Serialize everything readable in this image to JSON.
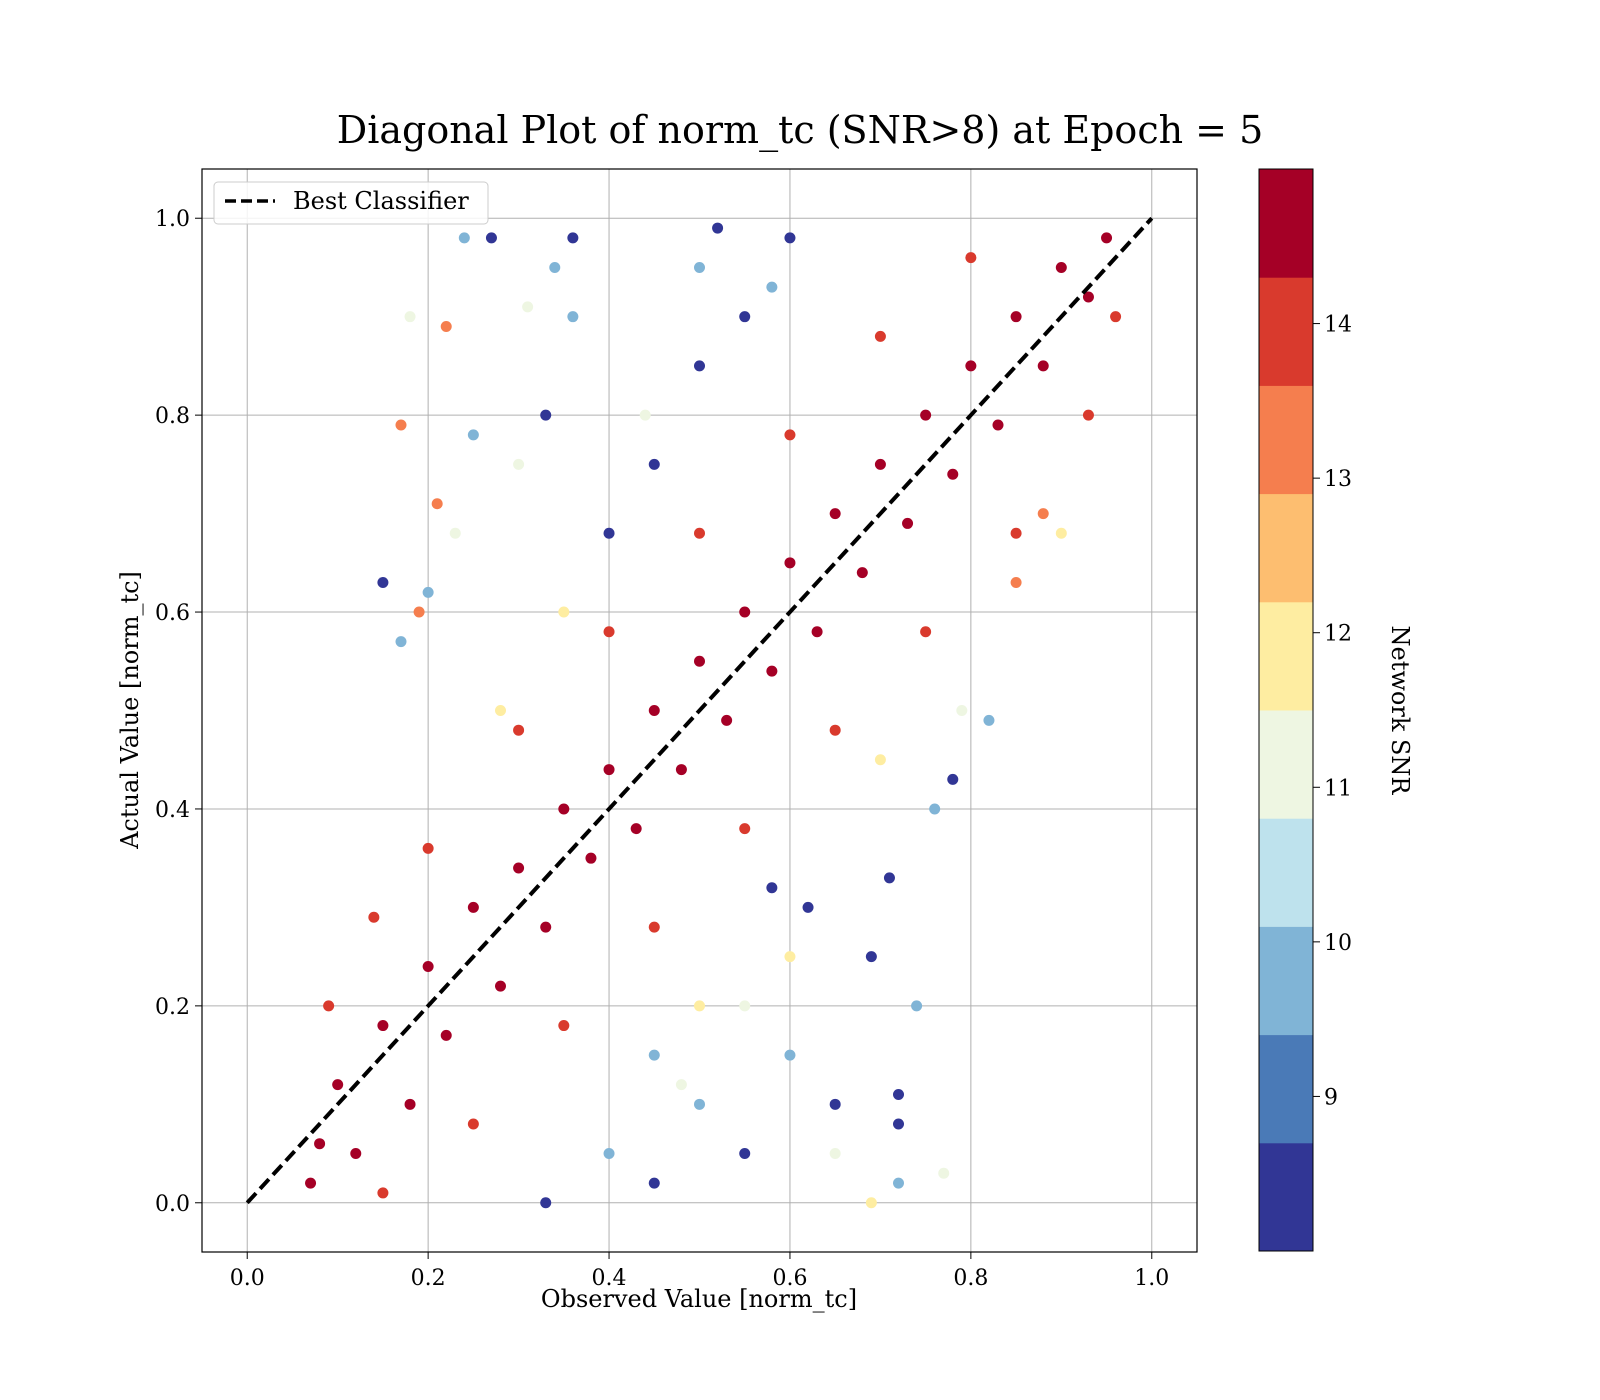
{
  "chart_data": {
    "type": "scatter",
    "title": "Diagonal Plot of norm_tc (SNR>8) at Epoch = 5",
    "xlabel": "Observed Value [norm_tc]",
    "ylabel": "Actual Value [norm_tc]",
    "xlim": [
      -0.05,
      1.05
    ],
    "ylim": [
      -0.05,
      1.05
    ],
    "xticks": [
      "0.0",
      "0.2",
      "0.4",
      "0.6",
      "0.8",
      "1.0"
    ],
    "yticks": [
      "0.0",
      "0.2",
      "0.4",
      "0.6",
      "0.8",
      "1.0"
    ],
    "grid": true,
    "legend": {
      "placement": "top-left",
      "entries": [
        "Best Classifier"
      ]
    },
    "reference_line": {
      "name": "Best Classifier",
      "style": "dashed",
      "color": "#000000",
      "x": [
        0,
        1
      ],
      "y": [
        0,
        1
      ]
    },
    "colorbar": {
      "label": "Network SNR",
      "range": [
        8,
        15
      ],
      "ticks": [
        "9",
        "10",
        "11",
        "12",
        "13",
        "14"
      ],
      "levels": [
        {
          "from": 8,
          "to": 8.7,
          "color": "#313695"
        },
        {
          "from": 8.7,
          "to": 9.4,
          "color": "#4a7ab7"
        },
        {
          "from": 9.4,
          "to": 10.1,
          "color": "#80b4d6"
        },
        {
          "from": 10.1,
          "to": 10.8,
          "color": "#bee2ed"
        },
        {
          "from": 10.8,
          "to": 11.5,
          "color": "#eef6e2"
        },
        {
          "from": 11.5,
          "to": 12.2,
          "color": "#feeda1"
        },
        {
          "from": 12.2,
          "to": 12.9,
          "color": "#fdbe70"
        },
        {
          "from": 12.9,
          "to": 13.6,
          "color": "#f57e4e"
        },
        {
          "from": 13.6,
          "to": 14.3,
          "color": "#d93a2d"
        },
        {
          "from": 14.3,
          "to": 15,
          "color": "#a50026"
        }
      ]
    },
    "series": [
      {
        "color_by": "Network SNR",
        "points": [
          [
            0.07,
            0.02,
            15
          ],
          [
            0.08,
            0.06,
            15
          ],
          [
            0.1,
            0.12,
            15
          ],
          [
            0.12,
            0.05,
            15
          ],
          [
            0.15,
            0.18,
            15
          ],
          [
            0.18,
            0.1,
            15
          ],
          [
            0.2,
            0.24,
            15
          ],
          [
            0.22,
            0.17,
            15
          ],
          [
            0.25,
            0.3,
            15
          ],
          [
            0.28,
            0.22,
            15
          ],
          [
            0.3,
            0.34,
            15
          ],
          [
            0.33,
            0.28,
            15
          ],
          [
            0.35,
            0.4,
            15
          ],
          [
            0.38,
            0.35,
            15
          ],
          [
            0.4,
            0.44,
            15
          ],
          [
            0.43,
            0.38,
            15
          ],
          [
            0.45,
            0.5,
            15
          ],
          [
            0.48,
            0.44,
            15
          ],
          [
            0.5,
            0.55,
            15
          ],
          [
            0.53,
            0.49,
            15
          ],
          [
            0.55,
            0.6,
            15
          ],
          [
            0.58,
            0.54,
            15
          ],
          [
            0.6,
            0.65,
            15
          ],
          [
            0.63,
            0.58,
            15
          ],
          [
            0.65,
            0.7,
            15
          ],
          [
            0.68,
            0.64,
            15
          ],
          [
            0.7,
            0.75,
            15
          ],
          [
            0.73,
            0.69,
            15
          ],
          [
            0.75,
            0.8,
            15
          ],
          [
            0.78,
            0.74,
            15
          ],
          [
            0.8,
            0.85,
            15
          ],
          [
            0.83,
            0.79,
            15
          ],
          [
            0.85,
            0.9,
            15
          ],
          [
            0.88,
            0.85,
            15
          ],
          [
            0.9,
            0.95,
            15
          ],
          [
            0.93,
            0.92,
            15
          ],
          [
            0.95,
            0.98,
            15
          ],
          [
            0.09,
            0.2,
            14
          ],
          [
            0.14,
            0.29,
            14
          ],
          [
            0.2,
            0.36,
            14
          ],
          [
            0.3,
            0.48,
            14
          ],
          [
            0.4,
            0.58,
            14
          ],
          [
            0.5,
            0.68,
            14
          ],
          [
            0.6,
            0.78,
            14
          ],
          [
            0.7,
            0.88,
            14
          ],
          [
            0.8,
            0.96,
            14
          ],
          [
            0.15,
            0.01,
            14
          ],
          [
            0.25,
            0.08,
            14
          ],
          [
            0.35,
            0.18,
            14
          ],
          [
            0.45,
            0.28,
            14
          ],
          [
            0.55,
            0.38,
            14
          ],
          [
            0.65,
            0.48,
            14
          ],
          [
            0.75,
            0.58,
            14
          ],
          [
            0.85,
            0.68,
            14
          ],
          [
            0.93,
            0.8,
            14
          ],
          [
            0.96,
            0.9,
            14
          ],
          [
            0.33,
            0.8,
            8
          ],
          [
            0.27,
            0.98,
            8
          ],
          [
            0.36,
            0.98,
            8
          ],
          [
            0.52,
            0.99,
            8
          ],
          [
            0.6,
            0.98,
            8
          ],
          [
            0.15,
            0.63,
            8
          ],
          [
            0.33,
            0.0,
            8
          ],
          [
            0.45,
            0.02,
            8
          ],
          [
            0.55,
            0.05,
            8
          ],
          [
            0.65,
            0.1,
            8
          ],
          [
            0.71,
            0.33,
            8
          ],
          [
            0.69,
            0.25,
            8
          ],
          [
            0.78,
            0.43,
            8
          ],
          [
            0.72,
            0.11,
            8
          ],
          [
            0.72,
            0.08,
            8
          ],
          [
            0.5,
            0.85,
            8
          ],
          [
            0.45,
            0.75,
            8
          ],
          [
            0.4,
            0.68,
            8
          ],
          [
            0.55,
            0.9,
            8
          ],
          [
            0.58,
            0.32,
            8
          ],
          [
            0.62,
            0.3,
            8
          ],
          [
            0.24,
            0.98,
            10
          ],
          [
            0.34,
            0.95,
            10
          ],
          [
            0.36,
            0.9,
            10
          ],
          [
            0.5,
            0.95,
            10
          ],
          [
            0.58,
            0.93,
            10
          ],
          [
            0.25,
            0.78,
            10
          ],
          [
            0.17,
            0.57,
            10
          ],
          [
            0.2,
            0.62,
            10
          ],
          [
            0.74,
            0.2,
            10
          ],
          [
            0.72,
            0.02,
            10
          ],
          [
            0.76,
            0.4,
            10
          ],
          [
            0.82,
            0.49,
            10
          ],
          [
            0.6,
            0.15,
            10
          ],
          [
            0.5,
            0.1,
            10
          ],
          [
            0.4,
            0.05,
            10
          ],
          [
            0.45,
            0.15,
            10
          ],
          [
            0.23,
            0.68,
            11
          ],
          [
            0.18,
            0.9,
            11
          ],
          [
            0.31,
            0.91,
            11
          ],
          [
            0.3,
            0.75,
            11
          ],
          [
            0.44,
            0.8,
            11
          ],
          [
            0.77,
            0.03,
            11
          ],
          [
            0.65,
            0.05,
            11
          ],
          [
            0.79,
            0.5,
            11
          ],
          [
            0.55,
            0.2,
            11
          ],
          [
            0.48,
            0.12,
            11
          ],
          [
            0.22,
            0.89,
            13
          ],
          [
            0.17,
            0.79,
            13
          ],
          [
            0.21,
            0.71,
            13
          ],
          [
            0.19,
            0.6,
            13
          ],
          [
            0.85,
            0.63,
            13
          ],
          [
            0.88,
            0.7,
            13
          ],
          [
            0.69,
            0.0,
            12
          ],
          [
            0.5,
            0.2,
            12
          ],
          [
            0.6,
            0.25,
            12
          ],
          [
            0.28,
            0.5,
            12
          ],
          [
            0.35,
            0.6,
            12
          ],
          [
            0.9,
            0.68,
            12
          ],
          [
            0.7,
            0.45,
            12
          ]
        ]
      }
    ]
  }
}
